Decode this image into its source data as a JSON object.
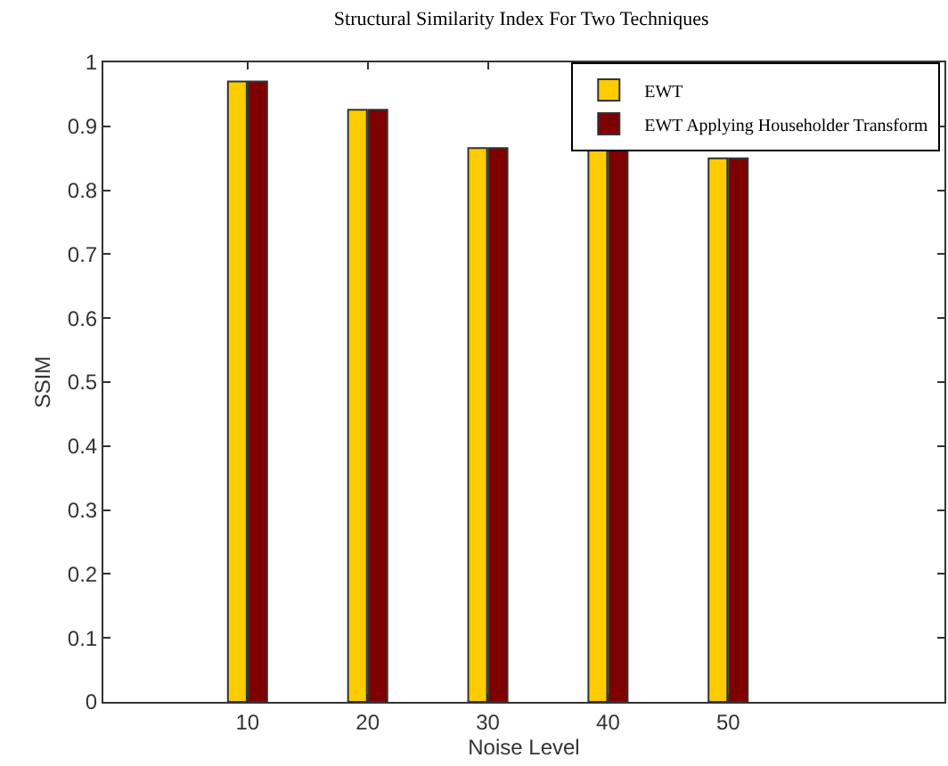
{
  "chart_data": {
    "type": "bar",
    "title": "Structural Similarity Index For Two Techniques",
    "xlabel": "Noise Level",
    "ylabel": "SSIM",
    "x": [
      10,
      20,
      30,
      40,
      50
    ],
    "series": [
      {
        "name": "EWT",
        "color": "#ffcc00",
        "values": [
          0.97,
          0.926,
          0.866,
          0.866,
          0.85
        ]
      },
      {
        "name": "EWT Applying Householder Transform",
        "color": "#7f0000",
        "values": [
          0.97,
          0.926,
          0.866,
          0.866,
          0.85
        ]
      }
    ],
    "xlim": [
      -2,
      68
    ],
    "xticks": [
      10,
      20,
      30,
      40,
      50
    ],
    "ylim": [
      0,
      1
    ],
    "yticks": [
      0,
      0.1,
      0.2,
      0.3,
      0.4,
      0.5,
      0.6,
      0.7,
      0.8,
      0.9,
      1
    ],
    "legend": "top right"
  }
}
